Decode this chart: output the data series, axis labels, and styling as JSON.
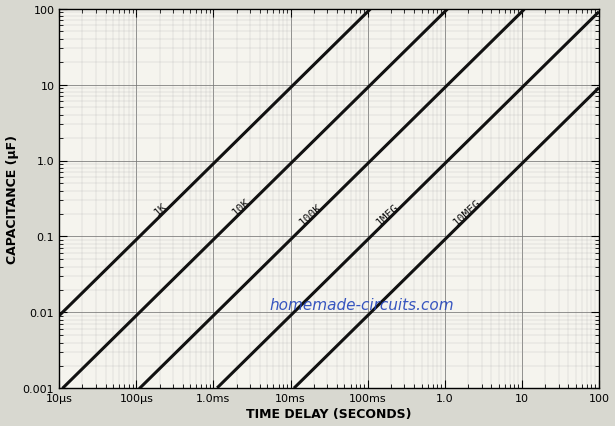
{
  "xlabel": "TIME DELAY (SECONDS)",
  "ylabel": "CAPACITANCE (μF)",
  "watermark": "homemade-circuits.com",
  "watermark_color": "#2244bb",
  "xmin": 1e-05,
  "xmax": 100,
  "ymin": 0.001,
  "ymax": 100,
  "resistors": [
    {
      "label": "1K",
      "R": 1000,
      "label_T": 0.0002
    },
    {
      "label": "10K",
      "R": 10000,
      "label_T": 0.002
    },
    {
      "label": "100K",
      "R": 100000,
      "label_T": 0.015
    },
    {
      "label": "1MEG",
      "R": 1000000,
      "label_T": 0.15
    },
    {
      "label": "10MEG",
      "R": 10000000,
      "label_T": 1.5
    }
  ],
  "line_color": "#111111",
  "line_width": 2.2,
  "label_fontsize": 8,
  "axis_label_fontsize": 9,
  "tick_fontsize": 8,
  "bg_color": "#d8d8d0",
  "plot_bg_color": "#f5f4ee",
  "watermark_fontsize": 11,
  "x_major_ticks": [
    1e-05,
    0.0001,
    0.001,
    0.01,
    0.1,
    1,
    10,
    100
  ],
  "x_tick_labels": [
    "10μs",
    "100μs",
    "1.0ms",
    "10ms",
    "100ms",
    "1.0",
    "10",
    "100"
  ],
  "y_major_ticks": [
    0.001,
    0.01,
    0.1,
    1.0,
    10,
    100
  ],
  "y_tick_labels": [
    "0.001",
    "0.01",
    "0.1",
    "1.0",
    "10",
    "100"
  ]
}
